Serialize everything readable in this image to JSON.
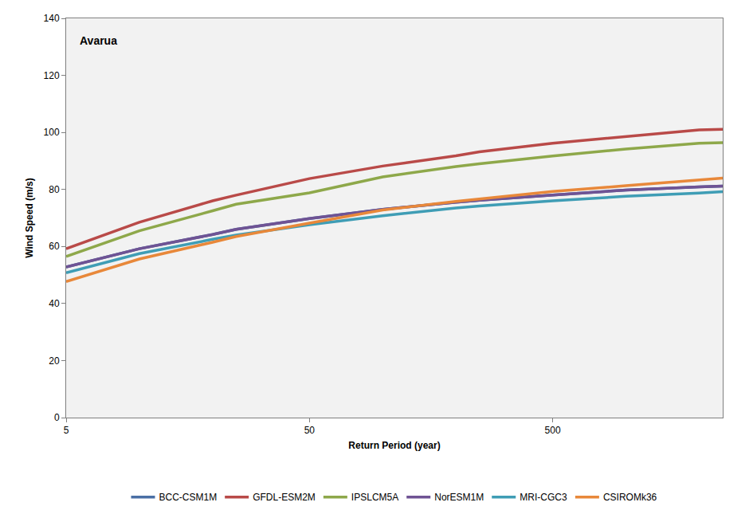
{
  "chart_data": {
    "type": "line",
    "title": "Avarua",
    "x_label": "Return Period (year)",
    "y_label": "Wind Speed (m/s)",
    "log": "x",
    "grid": false,
    "legend": "bottom",
    "x": [
      5,
      10,
      20,
      25,
      50,
      100,
      200,
      250,
      500,
      1000,
      2000,
      2500
    ],
    "xlim": [
      5,
      2500
    ],
    "xticks": [
      5,
      50,
      500
    ],
    "ylim": [
      0,
      140
    ],
    "yticks": [
      0,
      20,
      40,
      60,
      80,
      100,
      120,
      140
    ],
    "series": [
      {
        "name": "BCC-CSM1M",
        "color": "#4a6fa5",
        "values": [
          52.8,
          59.2,
          64.2,
          66,
          69.8,
          73,
          75.5,
          76.2,
          78,
          79.8,
          80.9,
          81.2
        ]
      },
      {
        "name": "GFDL-ESM2M",
        "color": "#b94a48",
        "values": [
          59.2,
          68.5,
          76,
          78,
          83.8,
          88.2,
          91.8,
          93.2,
          96.2,
          98.6,
          100.9,
          101.1
        ]
      },
      {
        "name": "IPSLCM5A",
        "color": "#8ea84a",
        "values": [
          56.5,
          65.5,
          72.5,
          74.8,
          78.8,
          84.4,
          88,
          89,
          91.7,
          94.2,
          96.2,
          96.4
        ]
      },
      {
        "name": "NorESM1M",
        "color": "#6f5394",
        "values": [
          52.8,
          59.2,
          64.2,
          66,
          69.8,
          73,
          75.5,
          76.2,
          78,
          79.8,
          80.9,
          81.2
        ]
      },
      {
        "name": "MRI-CGC3",
        "color": "#3f9db5",
        "values": [
          50.8,
          57.5,
          62.5,
          64,
          67.6,
          70.8,
          73.5,
          74.2,
          76,
          77.6,
          78.7,
          79.2
        ]
      },
      {
        "name": "CSIROMk36",
        "color": "#e8883a",
        "values": [
          47.7,
          55.6,
          61.5,
          63.5,
          68.2,
          72.8,
          75.8,
          76.6,
          79.3,
          81.3,
          83.2,
          84
        ]
      }
    ]
  }
}
